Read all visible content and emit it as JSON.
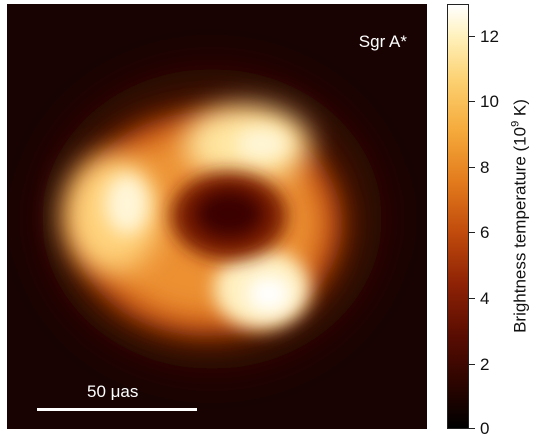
{
  "image": {
    "source_label": "Sgr A*",
    "scale_bar_label": "50 μas"
  },
  "colorbar": {
    "title_prefix": "Brightness temperature (10",
    "title_exponent": "9",
    "title_suffix": " K)",
    "ticks": [
      "0",
      "2",
      "4",
      "6",
      "8",
      "10",
      "12"
    ]
  },
  "colors": {
    "background": "#180302",
    "ring_outer": "#b8400c",
    "ring_mid": "#f0a03a",
    "ring_bright": "#fff2c0",
    "center_dark": "#3a0502"
  }
}
